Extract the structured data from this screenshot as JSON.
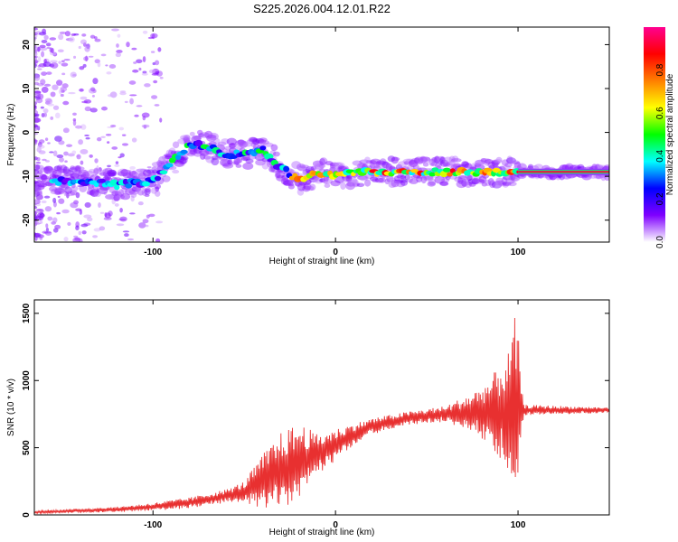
{
  "title": "S225.2026.004.12.01.R22",
  "chart_data": [
    {
      "type": "heatmap",
      "xlabel": "Height of straight line (km)",
      "ylabel": "Frequency (Hz)",
      "xlim": [
        -165,
        150
      ],
      "ylim": [
        -25,
        24
      ],
      "x_ticks": [
        "-100",
        "0",
        "100"
      ],
      "y_ticks": [
        "-20",
        "-10",
        "0",
        "10",
        "20"
      ],
      "grid": false,
      "ridge": [
        {
          "x": -160,
          "y": -11
        },
        {
          "x": -140,
          "y": -11
        },
        {
          "x": -120,
          "y": -12
        },
        {
          "x": -100,
          "y": -11
        },
        {
          "x": -90,
          "y": -7
        },
        {
          "x": -80,
          "y": -3
        },
        {
          "x": -70,
          "y": -3
        },
        {
          "x": -60,
          "y": -5
        },
        {
          "x": -50,
          "y": -5
        },
        {
          "x": -40,
          "y": -4
        },
        {
          "x": -30,
          "y": -8
        },
        {
          "x": -20,
          "y": -11
        },
        {
          "x": -10,
          "y": -9
        },
        {
          "x": 0,
          "y": -10
        },
        {
          "x": 10,
          "y": -9
        },
        {
          "x": 50,
          "y": -9
        },
        {
          "x": 100,
          "y": -9
        },
        {
          "x": 150,
          "y": -9
        }
      ],
      "colorbar": {
        "label": "Normalized spectral amplitude",
        "range": [
          0,
          1
        ],
        "ticks": [
          "0.0",
          "0.2",
          "0.4",
          "0.6",
          "0.8"
        ],
        "colors": [
          "#ffffff",
          "#7f00ff",
          "#0000ff",
          "#00ffff",
          "#00ff00",
          "#ffff00",
          "#ff7f00",
          "#ff0000",
          "#ff0090"
        ]
      }
    },
    {
      "type": "line",
      "xlabel": "Height of straight line (km)",
      "ylabel": "SNR (10 * v/v)",
      "xlim": [
        -165,
        150
      ],
      "ylim": [
        0,
        1600
      ],
      "x_ticks": [
        "-100",
        "0",
        "100"
      ],
      "y_ticks": [
        "0",
        "500",
        "1000",
        "1500"
      ],
      "grid": false,
      "color": "#e83030",
      "envelope": [
        {
          "x": -165,
          "base": 20,
          "amp": 10
        },
        {
          "x": -120,
          "base": 40,
          "amp": 20
        },
        {
          "x": -100,
          "base": 60,
          "amp": 30
        },
        {
          "x": -80,
          "base": 90,
          "amp": 40
        },
        {
          "x": -60,
          "base": 140,
          "amp": 50
        },
        {
          "x": -50,
          "base": 170,
          "amp": 80
        },
        {
          "x": -40,
          "base": 250,
          "amp": 200
        },
        {
          "x": -30,
          "base": 330,
          "amp": 280
        },
        {
          "x": -20,
          "base": 390,
          "amp": 300
        },
        {
          "x": -10,
          "base": 450,
          "amp": 150
        },
        {
          "x": 0,
          "base": 520,
          "amp": 120
        },
        {
          "x": 10,
          "base": 600,
          "amp": 80
        },
        {
          "x": 20,
          "base": 660,
          "amp": 60
        },
        {
          "x": 40,
          "base": 720,
          "amp": 50
        },
        {
          "x": 60,
          "base": 750,
          "amp": 60
        },
        {
          "x": 75,
          "base": 760,
          "amp": 150
        },
        {
          "x": 85,
          "base": 770,
          "amp": 250
        },
        {
          "x": 95,
          "base": 770,
          "amp": 450
        },
        {
          "x": 99,
          "base": 780,
          "amp": 750
        },
        {
          "x": 103,
          "base": 780,
          "amp": 40
        },
        {
          "x": 150,
          "base": 780,
          "amp": 20
        }
      ]
    }
  ]
}
